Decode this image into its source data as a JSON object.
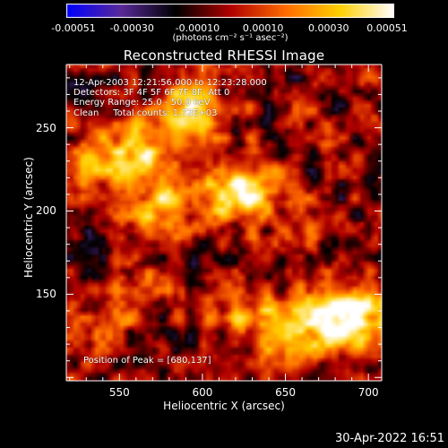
{
  "chart_data": {
    "type": "heatmap",
    "title": "Reconstructed RHESSI Image",
    "xlabel": "Heliocentric X (arcsec)",
    "ylabel": "Heliocentric Y (arcsec)",
    "xlim": [
      518,
      708
    ],
    "ylim": [
      98,
      288
    ],
    "xticks": [
      "550",
      "600",
      "650",
      "700"
    ],
    "yticks": [
      "150",
      "200",
      "250"
    ],
    "colorbar": {
      "ticks": [
        "-0.00051",
        "-0.00030",
        "-0.00010",
        "0.00010",
        "0.00030",
        "0.00051"
      ],
      "min": -0.00051,
      "max": 0.00051,
      "units": "(photons cm⁻² s⁻¹ asec⁻²)",
      "colormap": [
        "#0000ff",
        "#5a2a9a",
        "#000000",
        "#b00000",
        "#ff6a00",
        "#ffd000",
        "#ffffff"
      ]
    },
    "annotations": {
      "time_range": "12-Apr-2003 12:21:56.000 to 12:23:28.000",
      "detectors": "Detectors: 3F 4F 5F 6F 7F 8F, Att 0",
      "energy_range": "Energy Range: 25.0 - 50.0 keV",
      "method": "Clean     Total counts: 1.72E+03",
      "peak": "Position of Peak = [680,137]"
    },
    "peak_position": [
      680,
      137
    ],
    "sources": [
      {
        "x": 590,
        "y": 262,
        "amp": 0.00045
      },
      {
        "x": 560,
        "y": 235,
        "amp": 0.0004
      },
      {
        "x": 575,
        "y": 203,
        "amp": 0.00036
      },
      {
        "x": 615,
        "y": 212,
        "amp": 0.00034
      },
      {
        "x": 635,
        "y": 215,
        "amp": 0.0003
      },
      {
        "x": 530,
        "y": 222,
        "amp": 0.00025
      },
      {
        "x": 680,
        "y": 137,
        "amp": 0.00051
      },
      {
        "x": 650,
        "y": 130,
        "amp": 0.00038
      },
      {
        "x": 700,
        "y": 130,
        "amp": 0.00034
      },
      {
        "x": 620,
        "y": 140,
        "amp": 0.00022
      },
      {
        "x": 560,
        "y": 150,
        "amp": 0.0002
      },
      {
        "x": 660,
        "y": 190,
        "amp": 0.00015
      },
      {
        "x": 530,
        "y": 118,
        "amp": 0.00012
      }
    ]
  },
  "timestamp": "30-Apr-2022 16:51"
}
